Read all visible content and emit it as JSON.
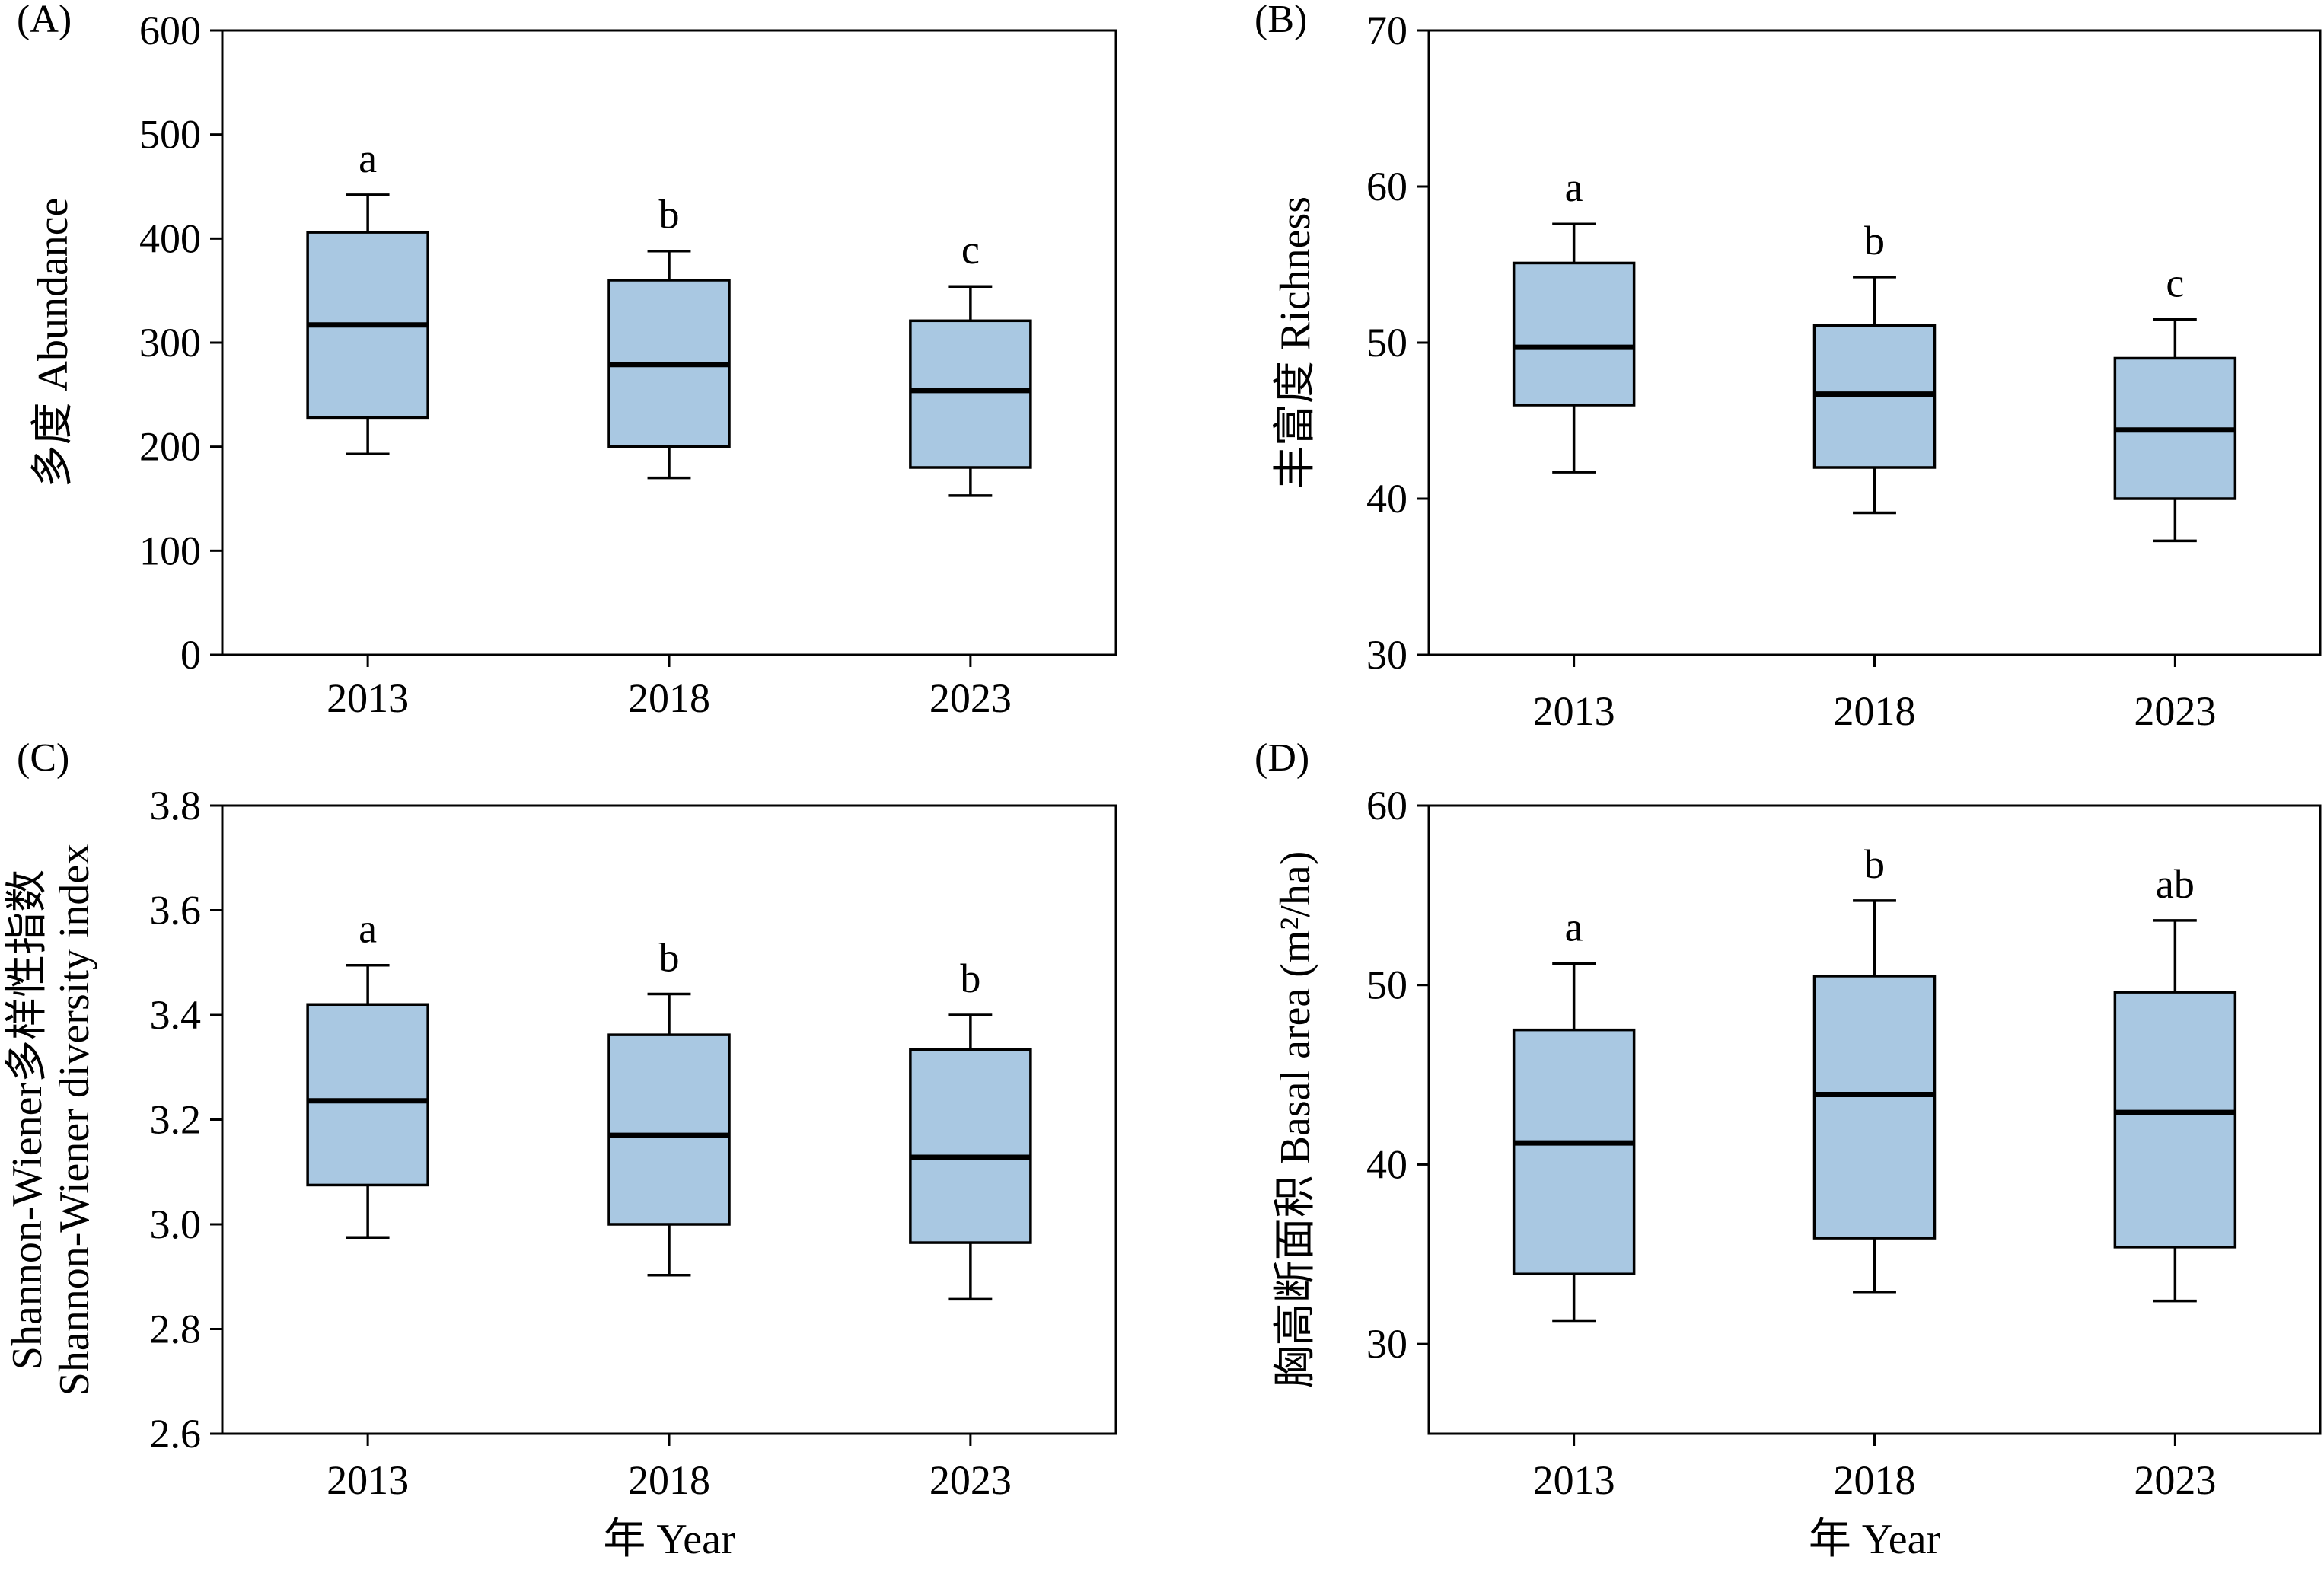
{
  "colors": {
    "box_fill": "#a9c8e2",
    "stroke": "#000000",
    "background": "#ffffff"
  },
  "chart_data": [
    {
      "panel": "(A)",
      "type": "box",
      "title": "",
      "xlabel": "",
      "ylabel": "多度 Abundance",
      "ylim": [
        0,
        600
      ],
      "yticks": [
        0,
        100,
        200,
        300,
        400,
        500,
        600
      ],
      "ytick_labels": [
        "0",
        "100",
        "200",
        "300",
        "400",
        "500",
        "600"
      ],
      "categories": [
        "2013",
        "2018",
        "2023"
      ],
      "boxes": [
        {
          "min": 193,
          "q1": 228,
          "median": 317,
          "q3": 406,
          "max": 442
        },
        {
          "min": 170,
          "q1": 200,
          "median": 279,
          "q3": 360,
          "max": 388
        },
        {
          "min": 153,
          "q1": 180,
          "median": 254,
          "q3": 321,
          "max": 354
        }
      ],
      "significance": [
        "a",
        "b",
        "c"
      ]
    },
    {
      "panel": "(B)",
      "type": "box",
      "title": "",
      "xlabel": "",
      "ylabel": "丰富度 Richness",
      "ylim": [
        30,
        70
      ],
      "yticks": [
        30,
        40,
        50,
        60,
        70
      ],
      "ytick_labels": [
        "30",
        "40",
        "50",
        "60",
        "70"
      ],
      "categories": [
        "2013",
        "2018",
        "2023"
      ],
      "boxes": [
        {
          "min": 41.7,
          "q1": 46.0,
          "median": 49.7,
          "q3": 55.1,
          "max": 57.6
        },
        {
          "min": 39.1,
          "q1": 42.0,
          "median": 46.7,
          "q3": 51.1,
          "max": 54.2
        },
        {
          "min": 37.3,
          "q1": 40.0,
          "median": 44.4,
          "q3": 49.0,
          "max": 51.5
        }
      ],
      "significance": [
        "a",
        "b",
        "c"
      ]
    },
    {
      "panel": "(C)",
      "type": "box",
      "title": "",
      "xlabel": "年 Year",
      "ylabel_lines": [
        "Shannon-Wiener多样性指数",
        "Shannon-Wiener diversity index"
      ],
      "ylim": [
        2.6,
        3.8
      ],
      "yticks": [
        2.6,
        2.8,
        3.0,
        3.2,
        3.4,
        3.6,
        3.8
      ],
      "ytick_labels": [
        "2.6",
        "2.8",
        "3.0",
        "3.2",
        "3.4",
        "3.6",
        "3.8"
      ],
      "categories": [
        "2013",
        "2018",
        "2023"
      ],
      "boxes": [
        {
          "min": 2.975,
          "q1": 3.075,
          "median": 3.236,
          "q3": 3.42,
          "max": 3.495
        },
        {
          "min": 2.903,
          "q1": 3.0,
          "median": 3.17,
          "q3": 3.362,
          "max": 3.44
        },
        {
          "min": 2.857,
          "q1": 2.965,
          "median": 3.128,
          "q3": 3.334,
          "max": 3.4
        }
      ],
      "significance": [
        "a",
        "b",
        "b"
      ]
    },
    {
      "panel": "(D)",
      "type": "box",
      "title": "",
      "xlabel": "年 Year",
      "ylabel": "胸高断面积 Basal area (m²/ha)",
      "ylim": [
        25,
        60
      ],
      "yticks": [
        30,
        40,
        50,
        60
      ],
      "ytick_labels": [
        "30",
        "40",
        "50",
        "60"
      ],
      "categories": [
        "2013",
        "2018",
        "2023"
      ],
      "boxes": [
        {
          "min": 31.3,
          "q1": 33.9,
          "median": 41.2,
          "q3": 47.5,
          "max": 51.2
        },
        {
          "min": 32.9,
          "q1": 35.9,
          "median": 43.9,
          "q3": 50.5,
          "max": 54.7
        },
        {
          "min": 32.4,
          "q1": 35.4,
          "median": 42.9,
          "q3": 49.6,
          "max": 53.6
        }
      ],
      "significance": [
        "a",
        "b",
        "ab"
      ]
    }
  ]
}
